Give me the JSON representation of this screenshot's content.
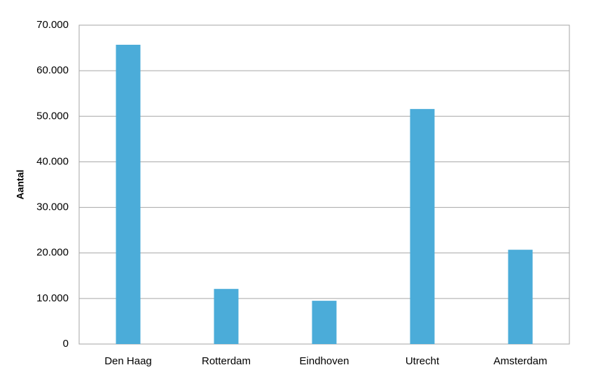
{
  "chart_data": {
    "type": "bar",
    "y_label": "Aantal",
    "categories": [
      "Den Haag",
      "Rotterdam",
      "Eindhoven",
      "Utrecht",
      "Amsterdam"
    ],
    "values": [
      65700,
      12100,
      9500,
      51600,
      20700
    ],
    "color": "#4bacd9",
    "ylim": [
      0,
      70000
    ],
    "yticks": [
      0,
      {
        "value": 10000,
        "label": "10.000"
      },
      {
        "value": 20000,
        "label": "20.000"
      },
      {
        "value": 30000,
        "label": "30.000"
      },
      {
        "value": 40000,
        "label": "40.000"
      },
      {
        "value": 50000,
        "label": "50.000"
      },
      {
        "value": 60000,
        "label": "60.000"
      },
      {
        "value": 70000,
        "label": "70.000"
      }
    ],
    "grid": true
  }
}
